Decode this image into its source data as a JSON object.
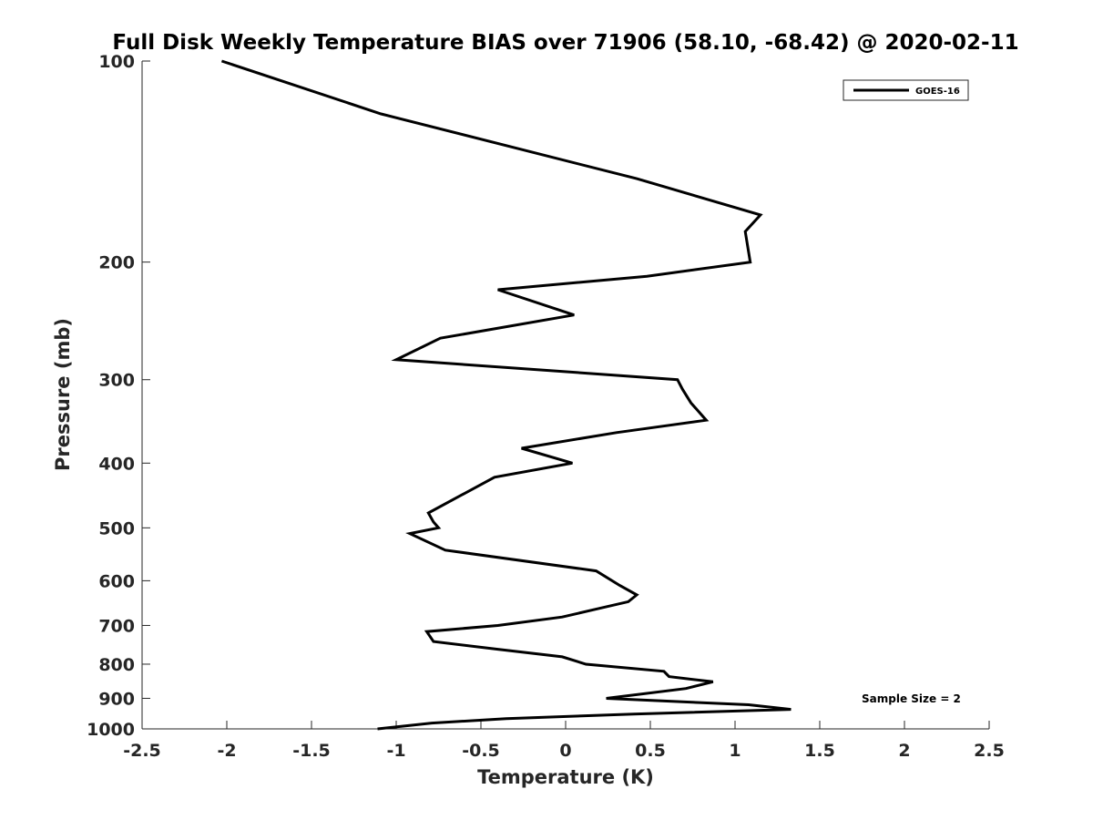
{
  "chart_data": {
    "type": "line",
    "title": "Full Disk Weekly Temperature BIAS over 71906 (58.10, -68.42) @ 2020-02-11",
    "xlabel": "Temperature (K)",
    "ylabel": "Pressure (mb)",
    "xlim": [
      -2.5,
      2.5
    ],
    "ylim": [
      1000,
      100
    ],
    "y_scale": "log",
    "x_ticks": [
      "-2.5",
      "-2",
      "-1.5",
      "-1",
      "-0.5",
      "0",
      "0.5",
      "1",
      "1.5",
      "2",
      "2.5"
    ],
    "y_ticks": [
      "100",
      "200",
      "300",
      "400",
      "500",
      "600",
      "700",
      "800",
      "900",
      "1000"
    ],
    "grid": false,
    "legend_position": "top-right",
    "annotation": "Sample Size = 2",
    "series": [
      {
        "name": "GOES-16",
        "color": "#000000",
        "points": [
          {
            "x": -2.03,
            "p": 100
          },
          {
            "x": -1.09,
            "p": 120
          },
          {
            "x": 0.42,
            "p": 150
          },
          {
            "x": 1.15,
            "p": 170
          },
          {
            "x": 1.06,
            "p": 180
          },
          {
            "x": 1.09,
            "p": 200
          },
          {
            "x": 0.48,
            "p": 210
          },
          {
            "x": -0.4,
            "p": 220
          },
          {
            "x": 0.05,
            "p": 240
          },
          {
            "x": -0.74,
            "p": 260
          },
          {
            "x": -1.0,
            "p": 280
          },
          {
            "x": 0.66,
            "p": 300
          },
          {
            "x": 0.69,
            "p": 310
          },
          {
            "x": 0.74,
            "p": 325
          },
          {
            "x": 0.83,
            "p": 345
          },
          {
            "x": 0.3,
            "p": 360
          },
          {
            "x": -0.26,
            "p": 380
          },
          {
            "x": 0.04,
            "p": 400
          },
          {
            "x": -0.42,
            "p": 420
          },
          {
            "x": -0.81,
            "p": 475
          },
          {
            "x": -0.78,
            "p": 490
          },
          {
            "x": -0.75,
            "p": 500
          },
          {
            "x": -0.92,
            "p": 510
          },
          {
            "x": -0.71,
            "p": 540
          },
          {
            "x": 0.18,
            "p": 580
          },
          {
            "x": 0.32,
            "p": 610
          },
          {
            "x": 0.42,
            "p": 630
          },
          {
            "x": 0.37,
            "p": 645
          },
          {
            "x": 0.2,
            "p": 660
          },
          {
            "x": -0.02,
            "p": 680
          },
          {
            "x": -0.4,
            "p": 700
          },
          {
            "x": -0.82,
            "p": 715
          },
          {
            "x": -0.78,
            "p": 740
          },
          {
            "x": -0.4,
            "p": 760
          },
          {
            "x": -0.02,
            "p": 780
          },
          {
            "x": 0.12,
            "p": 800
          },
          {
            "x": 0.58,
            "p": 820
          },
          {
            "x": 0.61,
            "p": 835
          },
          {
            "x": 0.87,
            "p": 850
          },
          {
            "x": 0.71,
            "p": 870
          },
          {
            "x": 0.24,
            "p": 900
          },
          {
            "x": 1.08,
            "p": 920
          },
          {
            "x": 1.33,
            "p": 935
          },
          {
            "x": 0.4,
            "p": 950
          },
          {
            "x": -0.35,
            "p": 965
          },
          {
            "x": -0.79,
            "p": 980
          },
          {
            "x": -1.11,
            "p": 1000
          }
        ]
      }
    ]
  }
}
